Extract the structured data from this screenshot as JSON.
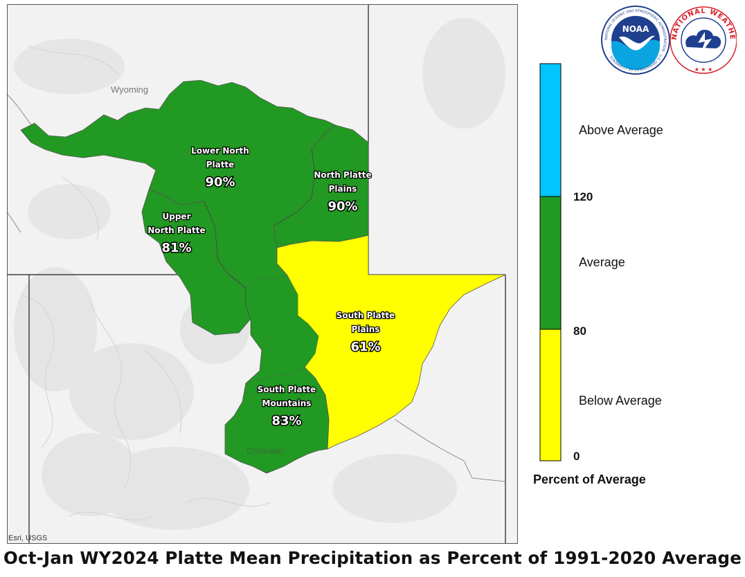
{
  "title": "Oct-Jan WY2024 Platte Mean Precipitation as Percent of 1991-2020 Average",
  "credit": "Esri, USGS",
  "states": [
    {
      "name": "Wyoming"
    },
    {
      "name": "Colorado"
    }
  ],
  "basins": [
    {
      "name_lines": [
        "Lower North",
        "Platte"
      ],
      "percent": "90%",
      "category": "Average"
    },
    {
      "name_lines": [
        "North Platte",
        "Plains"
      ],
      "percent": "90%",
      "category": "Average"
    },
    {
      "name_lines": [
        "Upper",
        "North Platte"
      ],
      "percent": "81%",
      "category": "Average"
    },
    {
      "name_lines": [
        "South Platte",
        "Plains"
      ],
      "percent": "61%",
      "category": "Below Average"
    },
    {
      "name_lines": [
        "South Platte",
        "Mountains"
      ],
      "percent": "83%",
      "category": "Average"
    }
  ],
  "legend": {
    "title": "Percent of Average",
    "categories": [
      {
        "label": "Above Average",
        "color": "#00c5ff"
      },
      {
        "label": "Average",
        "color": "#229922"
      },
      {
        "label": "Below Average",
        "color": "#ffff00"
      }
    ],
    "ticks": [
      "120",
      "80",
      "0"
    ]
  },
  "colors": {
    "average": "#229922",
    "below_average": "#ffff00",
    "above_average": "#00c5ff",
    "noaa_blue": "#1f3f8f",
    "nws_red": "#d8202a"
  },
  "logos": {
    "noaa": {
      "text": "NOAA",
      "ring_text": "NATIONAL OCEANIC AND ATMOSPHERIC ADMINISTRATION · U.S. DEPARTMENT OF COMMERCE"
    },
    "nws": {
      "ring_text": "NATIONAL WEATHER SERVICE"
    }
  }
}
